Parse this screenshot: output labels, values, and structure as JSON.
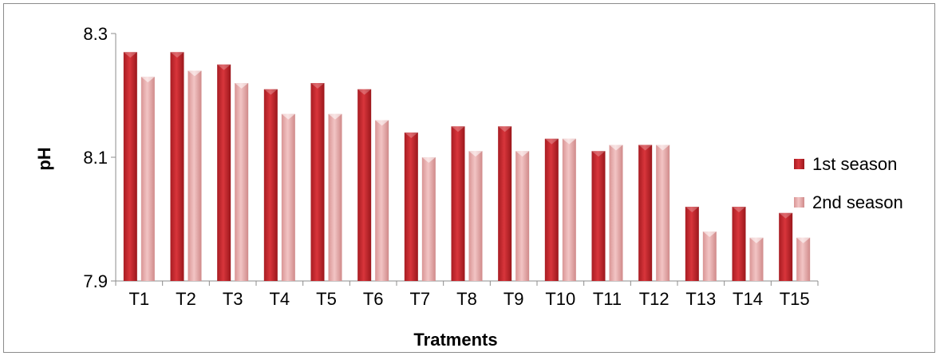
{
  "chart_data": {
    "type": "bar",
    "title": "",
    "xlabel": "Tratments",
    "ylabel": "pH",
    "ylim": [
      7.9,
      8.3
    ],
    "yticks": [
      "7.9",
      "8.1",
      "8.3"
    ],
    "grid": false,
    "legend_position": "right",
    "categories": [
      "T1",
      "T2",
      "T3",
      "T4",
      "T5",
      "T6",
      "T7",
      "T8",
      "T9",
      "T10",
      "T11",
      "T12",
      "T13",
      "T14",
      "T15"
    ],
    "series": [
      {
        "name": "1st season",
        "color": "#c0272d",
        "values": [
          8.27,
          8.27,
          8.25,
          8.21,
          8.22,
          8.21,
          8.14,
          8.15,
          8.15,
          8.13,
          8.11,
          8.12,
          8.02,
          8.02,
          8.01
        ]
      },
      {
        "name": "2nd season",
        "color": "#e6a8a8",
        "values": [
          8.23,
          8.24,
          8.22,
          8.17,
          8.17,
          8.16,
          8.1,
          8.11,
          8.11,
          8.13,
          8.12,
          8.12,
          7.98,
          7.97,
          7.97
        ]
      }
    ]
  }
}
